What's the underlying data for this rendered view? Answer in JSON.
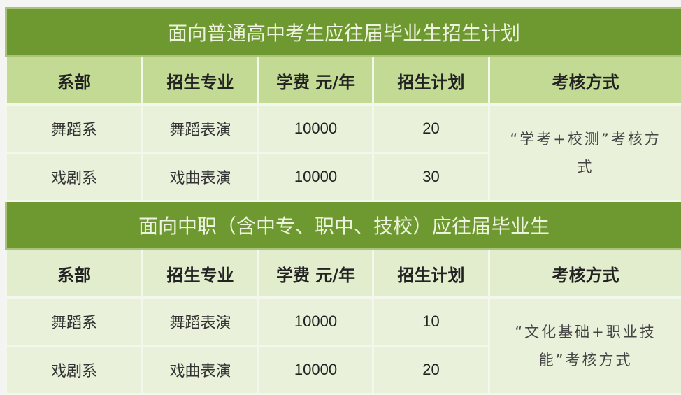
{
  "sections": [
    {
      "title": "面向普通高中考生应往届毕业生招生计划",
      "headers": [
        "系部",
        "招生专业",
        "学费 元/年",
        "招生计划",
        "考核方式"
      ],
      "rows": [
        {
          "dept": "舞蹈系",
          "major": "舞蹈表演",
          "fee": "10000",
          "plan": "20"
        },
        {
          "dept": "戏剧系",
          "major": "戏曲表演",
          "fee": "10000",
          "plan": "30"
        }
      ],
      "method": "“学考+校测”考核方式"
    },
    {
      "title": "面向中职（含中专、职中、技校）应往届毕业生",
      "headers": [
        "系部",
        "招生专业",
        "学费 元/年",
        "招生计划",
        "考核方式"
      ],
      "rows": [
        {
          "dept": "舞蹈系",
          "major": "舞蹈表演",
          "fee": "10000",
          "plan": "10"
        },
        {
          "dept": "戏剧系",
          "major": "戏曲表演",
          "fee": "10000",
          "plan": "20"
        }
      ],
      "method": "“文化基础+职业技能”考核方式"
    }
  ],
  "colors": {
    "title_band": "#6e9830",
    "header_row": "#c3da95",
    "data_row": "#e9f1da"
  }
}
